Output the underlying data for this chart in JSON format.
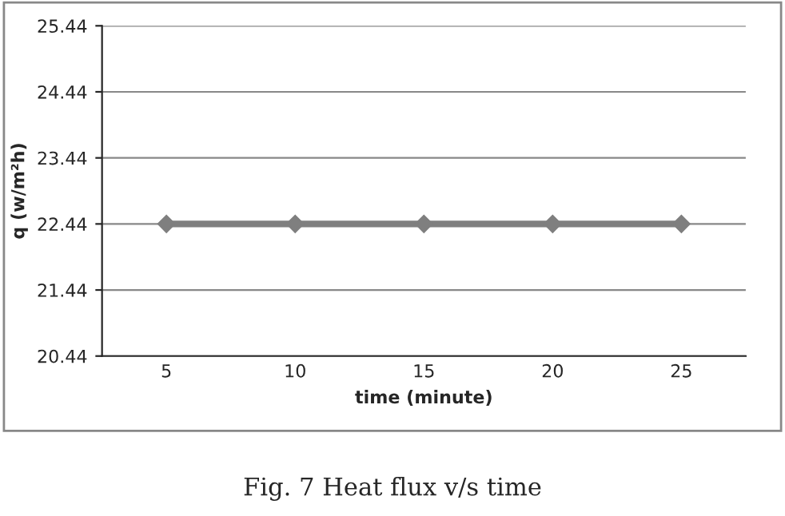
{
  "chart_data": {
    "type": "line",
    "categories": [
      "5",
      "10",
      "15",
      "20",
      "25"
    ],
    "series": [
      {
        "color": "#7f7f7f",
        "values": [
          22.44,
          22.44,
          22.44,
          22.44,
          22.44
        ]
      }
    ],
    "xlabel": "time (minute)",
    "ylabel": "q (w/m²h)",
    "ylim": [
      20.44,
      25.44
    ],
    "yticks": [
      20.44,
      21.44,
      22.44,
      23.44,
      24.44,
      25.44
    ],
    "grid": "y",
    "marker": "diamond",
    "line_style": "solid",
    "legend": false,
    "annotations": [
      "Fig. 7 Heat flux v/s time"
    ]
  }
}
